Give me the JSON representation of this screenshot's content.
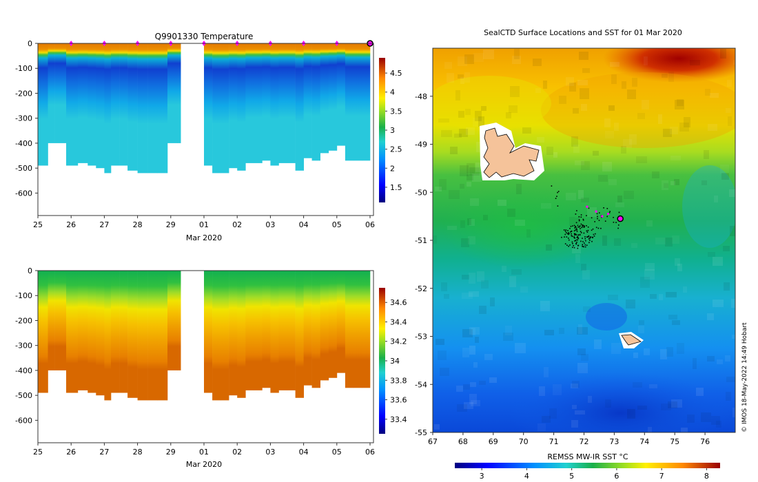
{
  "credit": "© IMOS 18-May-2022 14:49 Hobart",
  "colors": {
    "marker": "#ff00ff",
    "marker_edge": "#000000",
    "land": "#f5c39a",
    "track_point": "#000000"
  },
  "chart_data": [
    {
      "id": "temperature-section",
      "type": "heatmap",
      "title": "Q9901330  Temperature",
      "xlabel": "Mar 2020",
      "ylabel": "",
      "x_ticks": [
        "25",
        "26",
        "27",
        "28",
        "29",
        "01",
        "02",
        "03",
        "04",
        "05",
        "06"
      ],
      "x_tick_days": [
        0,
        1,
        2,
        3,
        4,
        5,
        6,
        7,
        8,
        9,
        10
      ],
      "xlim": [
        0,
        10
      ],
      "y_ticks": [
        0,
        -100,
        -200,
        -300,
        -400,
        -500,
        -600
      ],
      "ylim": [
        -690,
        0
      ],
      "colorbar": {
        "min": 1.1,
        "max": 4.9,
        "ticks": [
          1.5,
          2,
          2.5,
          3,
          3.5,
          4,
          4.5
        ],
        "tick_labels": [
          "1.5",
          "2",
          "2.5",
          "3",
          "3.5",
          "4",
          "4.5"
        ],
        "colormap": "jet-like"
      },
      "profile_days": [
        0.0,
        0.3,
        0.5,
        0.85,
        1.2,
        1.5,
        1.75,
        2.0,
        2.2,
        2.45,
        2.7,
        3.0,
        3.3,
        3.6,
        3.9,
        4.2,
        5.0,
        5.25,
        5.5,
        5.75,
        6.0,
        6.25,
        6.5,
        6.75,
        7.0,
        7.25,
        7.5,
        7.75,
        8.0,
        8.25,
        8.5,
        8.75,
        9.0,
        9.25,
        9.5,
        9.75
      ],
      "profile_max_depth": [
        490,
        400,
        400,
        490,
        480,
        490,
        500,
        520,
        490,
        490,
        510,
        520,
        520,
        520,
        400,
        400,
        490,
        520,
        520,
        500,
        510,
        480,
        480,
        470,
        490,
        480,
        480,
        510,
        460,
        470,
        440,
        430,
        410,
        470,
        470,
        470
      ],
      "gaps": [
        [
          4.3,
          4.95
        ]
      ],
      "surface_markers_days": [
        1,
        2,
        3,
        4,
        5,
        6,
        7,
        8,
        9
      ],
      "current_marker_day": 10,
      "ml_depth_typical": -90
    },
    {
      "id": "salinity-section",
      "type": "heatmap",
      "title": "",
      "xlabel": "Mar 2020",
      "ylabel": "",
      "x_ticks": [
        "25",
        "26",
        "27",
        "28",
        "29",
        "01",
        "02",
        "03",
        "04",
        "05",
        "06"
      ],
      "x_tick_days": [
        0,
        1,
        2,
        3,
        4,
        5,
        6,
        7,
        8,
        9,
        10
      ],
      "xlim": [
        0,
        10
      ],
      "y_ticks": [
        0,
        -100,
        -200,
        -300,
        -400,
        -500,
        -600
      ],
      "ylim": [
        -690,
        0
      ],
      "colorbar": {
        "min": 33.25,
        "max": 34.75,
        "ticks": [
          33.4,
          33.6,
          33.8,
          34,
          34.2,
          34.4,
          34.6
        ],
        "tick_labels": [
          "33.4",
          "33.6",
          "33.8",
          "34",
          "34.2",
          "34.4",
          "34.6"
        ],
        "colormap": "jet-like"
      }
    },
    {
      "id": "sst-map",
      "type": "heatmap",
      "title": "SealCTD Surface Locations and SST for 01 Mar 2020",
      "xlabel": "",
      "ylabel": "",
      "x_ticks": [
        67,
        68,
        69,
        70,
        71,
        72,
        73,
        74,
        75,
        76
      ],
      "xlim": [
        67,
        77
      ],
      "y_ticks": [
        -48,
        -49,
        -50,
        -51,
        -52,
        -53,
        -54,
        -55
      ],
      "ylim": [
        -55,
        -47
      ],
      "colorbar": {
        "label": "REMSS MW-IR SST °C",
        "min": 2.4,
        "max": 8.3,
        "ticks": [
          3,
          4,
          5,
          6,
          7,
          8
        ],
        "tick_labels": [
          "3",
          "4",
          "5",
          "6",
          "7",
          "8"
        ],
        "colormap": "jet-like"
      },
      "current_position": {
        "lon": 73.2,
        "lat": -50.55
      },
      "recent_positions": [
        {
          "lon": 72.4,
          "lat": -50.4
        },
        {
          "lon": 72.6,
          "lat": -50.5
        },
        {
          "lon": 72.8,
          "lat": -50.45
        },
        {
          "lon": 72.1,
          "lat": -50.3
        }
      ],
      "track_center": {
        "lon": 71.8,
        "lat": -50.9
      },
      "islands": [
        "Kerguelen",
        "Heard"
      ]
    }
  ]
}
